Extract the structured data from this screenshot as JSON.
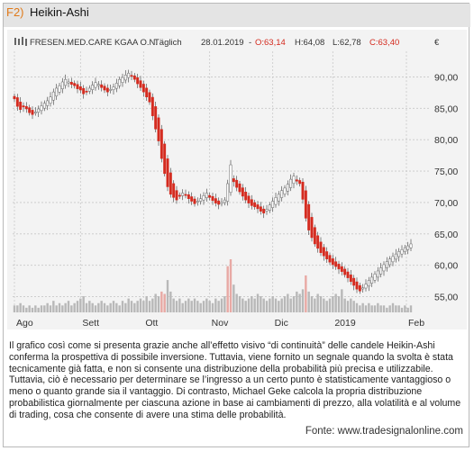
{
  "figure": {
    "label": "F2)",
    "title": "Heikin-Ashi"
  },
  "chart_data": {
    "type": "candlestick",
    "info": {
      "symbol": "FRESEN.MED.CARE KGAA O.N.",
      "interval": "Täglich",
      "date": "28.01.2019",
      "open": "O:63,14",
      "high": "H:64,08",
      "low": "L:62,78",
      "close": "C:63,40"
    },
    "currency_label": "€",
    "y_ticks": [
      "90,00",
      "85,00",
      "80,00",
      "75,00",
      "70,00",
      "65,00",
      "60,00",
      "55,00"
    ],
    "x_ticks": [
      "Ago",
      "Sett",
      "Ott",
      "Nov",
      "Dic",
      "2019",
      "Feb"
    ],
    "ylim": [
      52.5,
      93.5
    ],
    "colors": {
      "up": "#ffffff",
      "down": "#d42a1e",
      "wick": "#555555",
      "volume": "#b8b8b8",
      "volume_peak": "#e8a9a4"
    },
    "closes": [
      86.5,
      85.3,
      84.8,
      85.2,
      84.9,
      84.3,
      84.0,
      84.4,
      84.9,
      85.4,
      85.8,
      86.2,
      86.8,
      87.6,
      88.2,
      88.6,
      89.2,
      89.6,
      89.2,
      88.8,
      88.6,
      88.1,
      87.9,
      87.3,
      87.7,
      88.2,
      88.7,
      89.1,
      88.8,
      88.3,
      87.9,
      87.6,
      88.0,
      88.4,
      89.0,
      89.6,
      89.9,
      90.3,
      90.6,
      90.1,
      89.6,
      88.9,
      88.3,
      87.6,
      86.8,
      86.0,
      83.8,
      81.7,
      79.8,
      77.0,
      74.6,
      72.5,
      71.3,
      70.8,
      70.4,
      71.0,
      71.5,
      71.2,
      70.6,
      70.2,
      69.8,
      70.2,
      70.6,
      71.1,
      71.5,
      70.8,
      70.3,
      69.9,
      69.7,
      70.0,
      70.4,
      73.0,
      76.0,
      73.3,
      72.4,
      71.7,
      71.0,
      70.4,
      69.9,
      69.5,
      69.3,
      69.0,
      68.6,
      68.3,
      68.9,
      69.6,
      70.2,
      70.8,
      71.3,
      71.9,
      72.3,
      72.9,
      73.7,
      74.2,
      73.4,
      73.0,
      70.5,
      67.5,
      65.6,
      64.4,
      63.4,
      62.7,
      62.0,
      61.5,
      61.0,
      60.5,
      60.1,
      59.8,
      59.4,
      59.0,
      58.5,
      58.0,
      57.4,
      56.8,
      56.2,
      55.9,
      56.4,
      57.0,
      57.6,
      58.1,
      58.6,
      59.1,
      59.6,
      60.1,
      60.6,
      61.0,
      61.4,
      61.8,
      62.2,
      62.5,
      62.8,
      63.1,
      63.4
    ],
    "volume": [
      3,
      3,
      4,
      3,
      2,
      3,
      2,
      3,
      2,
      3,
      3,
      4,
      3,
      5,
      3,
      4,
      3,
      4,
      5,
      3,
      4,
      5,
      6,
      7,
      4,
      5,
      4,
      3,
      4,
      5,
      4,
      3,
      4,
      5,
      4,
      3,
      5,
      4,
      6,
      5,
      4,
      5,
      6,
      5,
      7,
      5,
      6,
      8,
      7,
      9,
      8,
      14,
      9,
      6,
      5,
      6,
      4,
      5,
      6,
      5,
      6,
      5,
      4,
      5,
      6,
      5,
      4,
      6,
      5,
      6,
      7,
      20,
      23,
      12,
      8,
      7,
      6,
      5,
      6,
      7,
      6,
      8,
      7,
      6,
      5,
      6,
      7,
      6,
      5,
      6,
      7,
      8,
      6,
      7,
      9,
      8,
      10,
      16,
      9,
      7,
      6,
      8,
      7,
      6,
      5,
      6,
      7,
      8,
      7,
      10,
      6,
      5,
      6,
      5,
      4,
      3,
      4,
      3,
      4,
      3,
      3,
      4,
      3,
      3,
      2,
      3,
      4,
      3,
      3,
      2,
      3,
      2,
      3
    ],
    "volume_peaks": [
      49,
      50,
      71,
      72,
      97
    ]
  },
  "caption": "Il grafico così come si presenta grazie anche all’effetto visivo “di continuità” delle candele Heikin-Ashi conferma la prospettiva di possibile inversione. Tuttavia, viene fornito un segnale quando la svolta è stata tecnicamente già fatta, e non si consente una distribuzione della probabilità più precisa e utilizzabile. Tuttavia, ciò è necessario per determinare se l’ingresso a un certo punto è statisticamente vantaggioso o meno o quanto grande sia il vantaggio. Di contrasto, Michael Geke calcola la propria distribuzione probabilistica giornalmente per ciascuna azione in base ai cambiamenti di prezzo, alla volatilità e al volume di trading, cosa che consente di avere una stima delle probabilità.",
  "source": "Fonte: www.tradesignalonline.com"
}
